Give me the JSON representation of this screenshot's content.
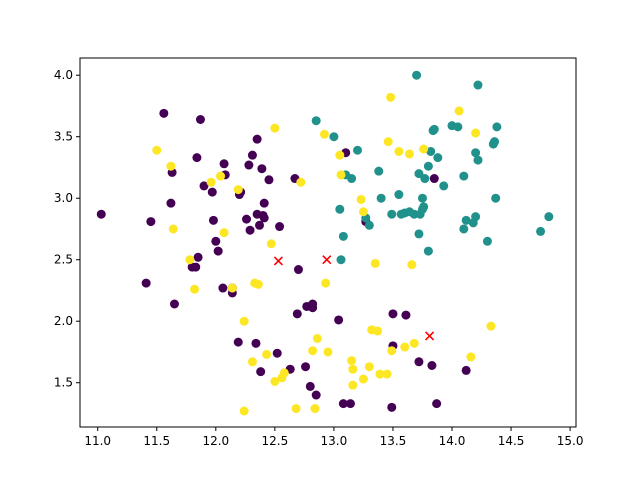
{
  "chart_data": {
    "type": "scatter",
    "title": "",
    "xlabel": "",
    "ylabel": "",
    "xlim": [
      10.85,
      15.05
    ],
    "ylim": [
      1.14,
      4.14
    ],
    "xticks": [
      11.0,
      11.5,
      12.0,
      12.5,
      13.0,
      13.5,
      14.0,
      14.5,
      15.0
    ],
    "xtick_labels": [
      "11.0",
      "11.5",
      "12.0",
      "12.5",
      "13.0",
      "13.5",
      "14.0",
      "14.5",
      "15.0"
    ],
    "yticks": [
      1.5,
      2.0,
      2.5,
      3.0,
      3.5,
      4.0
    ],
    "ytick_labels": [
      "1.5",
      "2.0",
      "2.5",
      "3.0",
      "3.5",
      "4.0"
    ],
    "grid": false,
    "legend": "none",
    "colors": {
      "purple": "#440154",
      "teal": "#21918c",
      "yellow": "#fde725",
      "centroid": "#ff0000"
    },
    "series": [
      {
        "color_key": "purple",
        "marker": "circle",
        "points": [
          [
            11.03,
            2.87
          ],
          [
            11.41,
            2.31
          ],
          [
            11.45,
            2.81
          ],
          [
            11.56,
            3.69
          ],
          [
            11.63,
            3.21
          ],
          [
            11.62,
            2.96
          ],
          [
            11.65,
            2.14
          ],
          [
            11.8,
            2.44
          ],
          [
            11.83,
            2.44
          ],
          [
            11.85,
            2.52
          ],
          [
            11.84,
            3.33
          ],
          [
            11.87,
            3.64
          ],
          [
            11.9,
            3.1
          ],
          [
            11.97,
            3.05
          ],
          [
            11.98,
            2.82
          ],
          [
            12.0,
            2.65
          ],
          [
            12.02,
            2.57
          ],
          [
            12.07,
            3.28
          ],
          [
            12.08,
            3.19
          ],
          [
            12.06,
            2.27
          ],
          [
            12.14,
            2.23
          ],
          [
            12.14,
            2.27
          ],
          [
            12.2,
            3.03
          ],
          [
            12.21,
            3.05
          ],
          [
            12.19,
            1.83
          ],
          [
            12.26,
            2.83
          ],
          [
            12.29,
            2.74
          ],
          [
            12.28,
            3.27
          ],
          [
            12.31,
            3.35
          ],
          [
            12.35,
            3.48
          ],
          [
            12.35,
            2.87
          ],
          [
            12.34,
            1.82
          ],
          [
            12.38,
            1.59
          ],
          [
            12.39,
            3.24
          ],
          [
            12.37,
            2.78
          ],
          [
            12.41,
            2.96
          ],
          [
            12.41,
            2.84
          ],
          [
            12.4,
            2.86
          ],
          [
            12.45,
            3.15
          ],
          [
            12.54,
            2.77
          ],
          [
            12.52,
            1.74
          ],
          [
            12.63,
            1.61
          ],
          [
            12.67,
            3.16
          ],
          [
            12.7,
            2.42
          ],
          [
            12.69,
            2.06
          ],
          [
            12.77,
            2.12
          ],
          [
            12.76,
            1.63
          ],
          [
            12.8,
            1.47
          ],
          [
            12.82,
            2.11
          ],
          [
            12.82,
            2.14
          ],
          [
            12.85,
            1.4
          ],
          [
            13.04,
            2.01
          ],
          [
            13.08,
            1.33
          ],
          [
            13.1,
            3.37
          ],
          [
            13.14,
            1.33
          ],
          [
            13.27,
            2.81
          ],
          [
            13.5,
            2.06
          ],
          [
            13.5,
            1.8
          ],
          [
            13.49,
            1.3
          ],
          [
            13.61,
            2.05
          ],
          [
            13.72,
            1.67
          ],
          [
            13.83,
            1.64
          ],
          [
            13.85,
            3.16
          ],
          [
            13.87,
            1.33
          ],
          [
            14.12,
            1.6
          ]
        ]
      },
      {
        "color_key": "teal",
        "marker": "circle",
        "points": [
          [
            12.85,
            3.63
          ],
          [
            13.0,
            3.5
          ],
          [
            13.05,
            2.91
          ],
          [
            13.06,
            2.5
          ],
          [
            13.08,
            2.69
          ],
          [
            13.1,
            3.19
          ],
          [
            13.15,
            3.16
          ],
          [
            13.2,
            3.39
          ],
          [
            13.27,
            2.84
          ],
          [
            13.3,
            2.78
          ],
          [
            13.38,
            3.22
          ],
          [
            13.4,
            3.0
          ],
          [
            13.49,
            2.87
          ],
          [
            13.55,
            3.03
          ],
          [
            13.57,
            2.87
          ],
          [
            13.6,
            2.88
          ],
          [
            13.64,
            2.89
          ],
          [
            13.68,
            2.87
          ],
          [
            13.7,
            4.0
          ],
          [
            13.72,
            3.2
          ],
          [
            13.72,
            2.71
          ],
          [
            13.73,
            2.87
          ],
          [
            13.75,
            2.91
          ],
          [
            13.76,
            2.93
          ],
          [
            13.75,
            3.0
          ],
          [
            13.77,
            3.16
          ],
          [
            13.8,
            3.26
          ],
          [
            13.8,
            2.57
          ],
          [
            13.82,
            3.38
          ],
          [
            13.84,
            3.55
          ],
          [
            13.85,
            3.56
          ],
          [
            13.88,
            3.33
          ],
          [
            13.93,
            3.1
          ],
          [
            14.0,
            3.59
          ],
          [
            14.05,
            3.58
          ],
          [
            14.1,
            3.18
          ],
          [
            14.1,
            2.75
          ],
          [
            14.12,
            2.82
          ],
          [
            14.18,
            2.8
          ],
          [
            14.2,
            2.85
          ],
          [
            14.2,
            3.37
          ],
          [
            14.22,
            3.31
          ],
          [
            14.22,
            3.92
          ],
          [
            14.3,
            2.65
          ],
          [
            14.35,
            3.44
          ],
          [
            14.36,
            3.46
          ],
          [
            14.38,
            3.58
          ],
          [
            14.37,
            3.0
          ],
          [
            14.75,
            2.73
          ],
          [
            14.82,
            2.85
          ]
        ]
      },
      {
        "color_key": "yellow",
        "marker": "circle",
        "points": [
          [
            11.5,
            3.39
          ],
          [
            11.62,
            3.26
          ],
          [
            11.64,
            2.75
          ],
          [
            11.78,
            2.5
          ],
          [
            11.82,
            2.26
          ],
          [
            11.96,
            3.13
          ],
          [
            12.04,
            3.18
          ],
          [
            12.07,
            2.72
          ],
          [
            12.14,
            2.27
          ],
          [
            12.19,
            3.07
          ],
          [
            12.24,
            2.0
          ],
          [
            12.24,
            1.27
          ],
          [
            12.31,
            1.67
          ],
          [
            12.33,
            2.31
          ],
          [
            12.36,
            2.3
          ],
          [
            12.43,
            1.73
          ],
          [
            12.47,
            2.63
          ],
          [
            12.5,
            3.57
          ],
          [
            12.5,
            1.51
          ],
          [
            12.56,
            1.54
          ],
          [
            12.58,
            1.58
          ],
          [
            12.68,
            1.29
          ],
          [
            12.72,
            3.13
          ],
          [
            12.82,
            1.76
          ],
          [
            12.84,
            1.29
          ],
          [
            12.86,
            1.86
          ],
          [
            12.92,
            3.52
          ],
          [
            12.93,
            2.31
          ],
          [
            12.95,
            1.75
          ],
          [
            13.05,
            3.35
          ],
          [
            13.06,
            3.19
          ],
          [
            13.15,
            1.68
          ],
          [
            13.16,
            1.61
          ],
          [
            13.16,
            1.48
          ],
          [
            13.23,
            2.99
          ],
          [
            13.25,
            2.89
          ],
          [
            13.25,
            1.53
          ],
          [
            13.3,
            1.63
          ],
          [
            13.32,
            1.93
          ],
          [
            13.35,
            2.47
          ],
          [
            13.37,
            1.92
          ],
          [
            13.39,
            1.57
          ],
          [
            13.45,
            1.57
          ],
          [
            13.46,
            3.46
          ],
          [
            13.49,
            1.76
          ],
          [
            13.48,
            3.82
          ],
          [
            13.55,
            3.38
          ],
          [
            13.6,
            1.79
          ],
          [
            13.64,
            3.36
          ],
          [
            13.66,
            2.46
          ],
          [
            13.68,
            1.82
          ],
          [
            13.76,
            3.4
          ],
          [
            14.06,
            3.71
          ],
          [
            14.2,
            3.53
          ],
          [
            14.16,
            1.71
          ],
          [
            14.33,
            1.96
          ]
        ]
      },
      {
        "color_key": "centroid",
        "marker": "x",
        "points": [
          [
            12.53,
            2.49
          ],
          [
            12.94,
            2.5
          ],
          [
            13.81,
            1.88
          ]
        ]
      }
    ]
  }
}
